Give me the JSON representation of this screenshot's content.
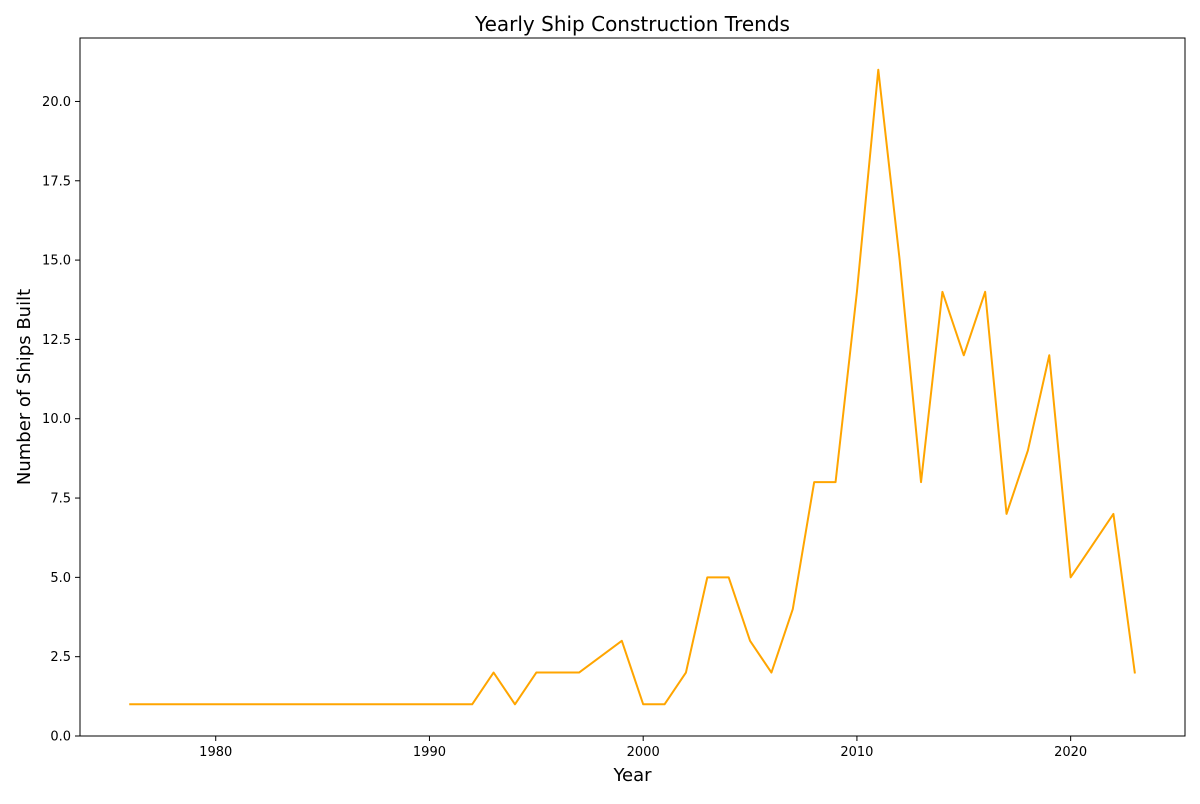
{
  "chart_data": {
    "type": "line",
    "title": "Yearly Ship Construction Trends",
    "xlabel": "Year",
    "ylabel": "Number of Ships Built",
    "xlim": [
      1973.65,
      2025.35
    ],
    "ylim": [
      0,
      22.0
    ],
    "x_ticks": [
      1980,
      1990,
      2000,
      2010,
      2020
    ],
    "x_tick_labels": [
      "1980",
      "1990",
      "2000",
      "2010",
      "2020"
    ],
    "y_ticks": [
      0,
      2.5,
      5,
      7.5,
      10,
      12.5,
      15,
      17.5,
      20
    ],
    "y_tick_labels": [
      "0.0",
      "2.5",
      "5.0",
      "7.5",
      "10.0",
      "12.5",
      "15.0",
      "17.5",
      "20.0"
    ],
    "grid": false,
    "line_color": "#FFA500",
    "series": [
      {
        "x": [
          1976,
          1977,
          1978,
          1979,
          1980,
          1981,
          1982,
          1983,
          1984,
          1985,
          1986,
          1987,
          1988,
          1989,
          1990,
          1991,
          1992,
          1993,
          1994,
          1995,
          1996,
          1997,
          1998,
          1999,
          2000,
          2001,
          2002,
          2003,
          2004,
          2005,
          2006,
          2007,
          2008,
          2009,
          2010,
          2011,
          2012,
          2013,
          2014,
          2015,
          2016,
          2017,
          2018,
          2019,
          2020,
          2021,
          2022,
          2023
        ],
        "values": [
          1,
          1,
          1,
          1,
          1,
          1,
          1,
          1,
          1,
          1,
          1,
          1,
          1,
          1,
          1,
          1,
          1,
          2,
          1,
          2,
          2,
          2,
          2.5,
          3,
          1,
          1,
          2,
          5,
          5,
          3,
          2,
          4,
          8,
          8,
          14,
          21,
          15,
          8,
          14,
          12,
          14,
          7,
          9,
          12,
          5,
          6,
          7,
          2
        ]
      }
    ]
  }
}
